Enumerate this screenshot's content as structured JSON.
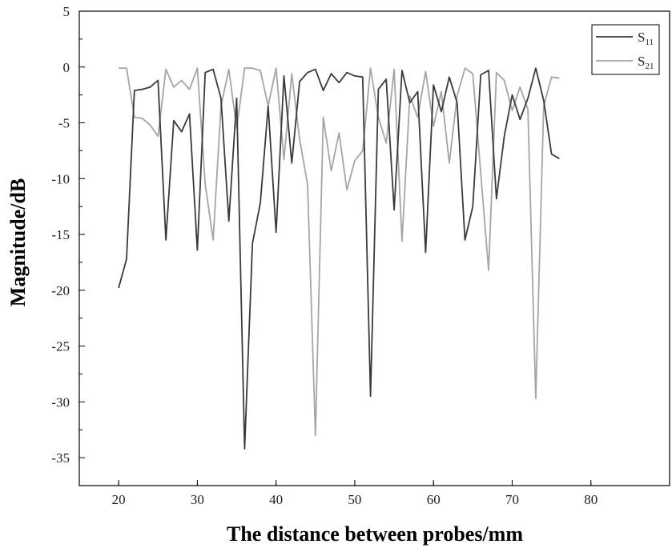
{
  "chart_data": {
    "type": "line",
    "xlabel": "The distance between probes/mm",
    "ylabel": "Magnitude/dB",
    "xlim": [
      15,
      90
    ],
    "ylim": [
      -37.5,
      5
    ],
    "xticks": [
      20,
      30,
      40,
      50,
      60,
      70,
      80
    ],
    "yticks": [
      5,
      0,
      -5,
      -10,
      -15,
      -20,
      -25,
      -30,
      -35
    ],
    "grid": false,
    "legend_position": "top-right",
    "series": [
      {
        "name": "S11",
        "name_main": "S",
        "name_sub": "11",
        "color": "#3a3a3a",
        "x": [
          20,
          21,
          22,
          23,
          24,
          25,
          26,
          27,
          28,
          29,
          30,
          31,
          32,
          33,
          34,
          35,
          36,
          37,
          38,
          39,
          40,
          41,
          42,
          43,
          44,
          45,
          46,
          47,
          48,
          49,
          50,
          51,
          52,
          53,
          54,
          55,
          56,
          57,
          58,
          59,
          60,
          61,
          62,
          63,
          64,
          65,
          66,
          67,
          68,
          69,
          70,
          71,
          72,
          73,
          74,
          75,
          76
        ],
        "y": [
          -19.8,
          -17.2,
          -2.1,
          -2.0,
          -1.8,
          -1.2,
          -15.5,
          -4.8,
          -5.8,
          -4.2,
          -16.4,
          -0.5,
          -0.2,
          -2.8,
          -13.8,
          -2.8,
          -34.2,
          -15.8,
          -12.2,
          -3.5,
          -14.8,
          -0.8,
          -8.6,
          -1.3,
          -0.5,
          -0.2,
          -2.1,
          -0.6,
          -1.4,
          -0.5,
          -0.8,
          -0.9,
          -29.5,
          -2.0,
          -1.1,
          -12.8,
          -0.3,
          -3.2,
          -2.2,
          -16.6,
          -1.6,
          -4.0,
          -0.9,
          -3.2,
          -15.5,
          -12.5,
          -0.7,
          -0.3,
          -11.8,
          -6.2,
          -2.5,
          -4.7,
          -2.8,
          -0.1,
          -3.0,
          -7.8,
          -8.2
        ]
      },
      {
        "name": "S21",
        "name_main": "S",
        "name_sub": "21",
        "color": "#a5a5a5",
        "x": [
          20,
          21,
          22,
          23,
          24,
          25,
          26,
          27,
          28,
          29,
          30,
          31,
          32,
          33,
          34,
          35,
          36,
          37,
          38,
          39,
          40,
          41,
          42,
          43,
          44,
          45,
          46,
          47,
          48,
          49,
          50,
          51,
          52,
          53,
          54,
          55,
          56,
          57,
          58,
          59,
          60,
          61,
          62,
          63,
          64,
          65,
          66,
          67,
          68,
          69,
          70,
          71,
          72,
          73,
          74,
          75,
          76
        ],
        "y": [
          -0.1,
          -0.1,
          -4.5,
          -4.6,
          -5.2,
          -6.2,
          -0.2,
          -1.8,
          -1.2,
          -2.0,
          -0.1,
          -10.5,
          -15.5,
          -3.5,
          -0.2,
          -5.5,
          -0.1,
          -0.1,
          -0.3,
          -3.5,
          -0.1,
          -8.3,
          -0.6,
          -6.5,
          -10.5,
          -33.0,
          -4.5,
          -9.3,
          -5.9,
          -11.0,
          -8.4,
          -7.5,
          -0.1,
          -4.5,
          -6.8,
          -0.2,
          -15.6,
          -2.6,
          -4.5,
          -0.4,
          -5.3,
          -2.2,
          -8.6,
          -2.6,
          -0.1,
          -0.6,
          -9.5,
          -18.2,
          -0.5,
          -1.2,
          -3.9,
          -1.8,
          -3.8,
          -29.7,
          -3.5,
          -0.9,
          -1.0
        ]
      }
    ]
  }
}
